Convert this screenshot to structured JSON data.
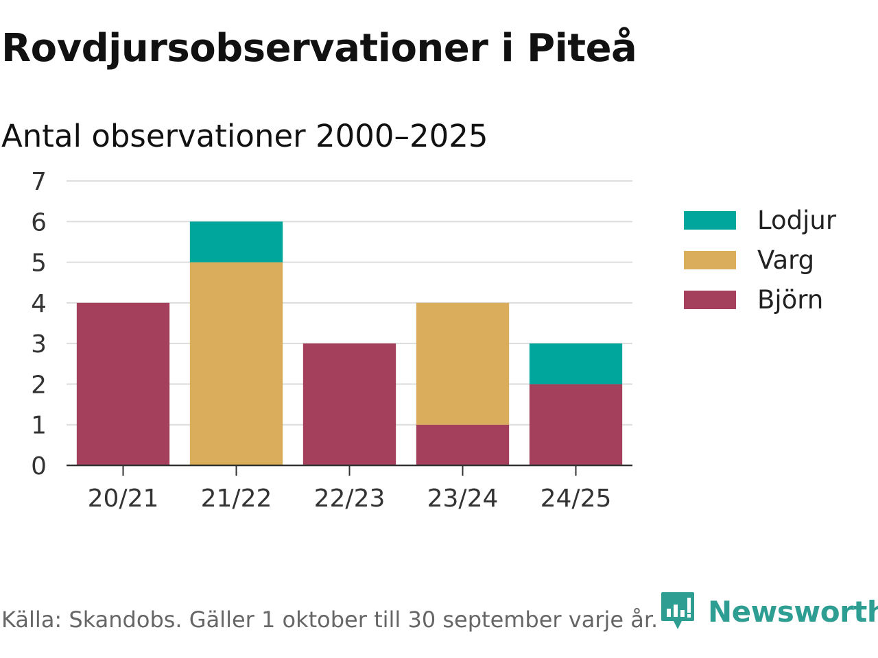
{
  "header": {
    "title": "Rovdjursobservationer i Piteå",
    "subtitle": "Antal observationer 2000–2025"
  },
  "footer": {
    "source": "Källa: Skandobs. Gäller 1 oktober till 30 september varje år.",
    "brand": "Newsworthy",
    "brand_color": "#2f9e92"
  },
  "chart_data": {
    "type": "bar",
    "stacked": true,
    "title": "Rovdjursobservationer i Piteå",
    "subtitle": "Antal observationer 2000–2025",
    "xlabel": "",
    "ylabel": "",
    "categories": [
      "20/21",
      "21/22",
      "22/23",
      "23/24",
      "24/25"
    ],
    "series": [
      {
        "name": "Björn",
        "color": "#a4405c",
        "values": [
          4,
          0,
          3,
          1,
          2
        ]
      },
      {
        "name": "Varg",
        "color": "#d9ad5b",
        "values": [
          0,
          5,
          0,
          3,
          0
        ]
      },
      {
        "name": "Lodjur",
        "color": "#00a69c",
        "values": [
          0,
          1,
          0,
          0,
          1
        ]
      }
    ],
    "legend_order": [
      "Lodjur",
      "Varg",
      "Björn"
    ],
    "legend_position": "right",
    "ylim": [
      0,
      7
    ],
    "yticks": [
      0,
      1,
      2,
      3,
      4,
      5,
      6,
      7
    ],
    "grid": true
  }
}
